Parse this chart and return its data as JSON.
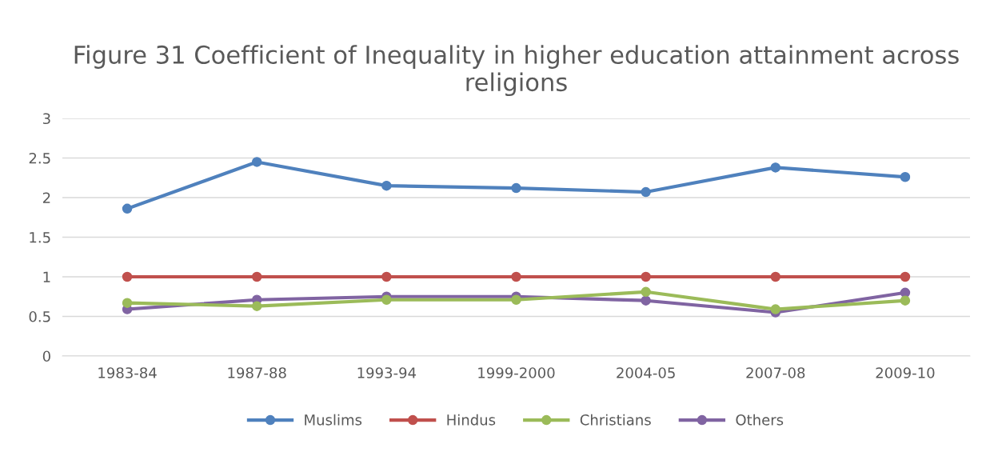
{
  "chart_data": {
    "type": "line",
    "title": "Figure 31 Coefficient of Inequality in higher education attainment across religions",
    "categories": [
      "1983-84",
      "1987-88",
      "1993-94",
      "1999-2000",
      "2004-05",
      "2007-08",
      "2009-10"
    ],
    "series": [
      {
        "name": "Muslims",
        "color": "#4f81bd",
        "values": [
          1.86,
          2.45,
          2.15,
          2.12,
          2.07,
          2.38,
          2.26
        ]
      },
      {
        "name": "Hindus",
        "color": "#c0504d",
        "values": [
          1,
          1,
          1,
          1,
          1,
          1,
          1
        ]
      },
      {
        "name": "Christians",
        "color": "#9bbb59",
        "values": [
          0.67,
          0.63,
          0.71,
          0.71,
          0.81,
          0.59,
          0.7
        ]
      },
      {
        "name": "Others",
        "color": "#8064a2",
        "values": [
          0.59,
          0.71,
          0.75,
          0.75,
          0.7,
          0.55,
          0.8
        ]
      }
    ],
    "ylim": [
      0,
      3
    ],
    "yticks": [
      0,
      0.5,
      1,
      1.5,
      2,
      2.5,
      3
    ],
    "grid": "y",
    "legend": "bottom",
    "marker": "circle",
    "line_style": "solid"
  }
}
